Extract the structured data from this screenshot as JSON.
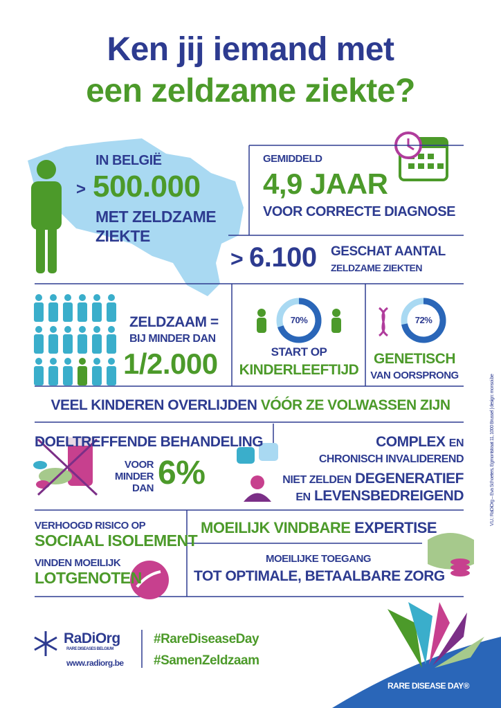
{
  "title": {
    "line1": "Ken jij iemand met",
    "line2": "een zeldzame ziekte?"
  },
  "belgium": {
    "intro": "IN BELGIË",
    "prefix": ">",
    "number": "500.000",
    "text1": "MET ZELDZAME",
    "text2": "ZIEKTE"
  },
  "diagnosis": {
    "intro": "GEMIDDELD",
    "number": "4,9 JAAR",
    "text": "VOOR CORRECTE DIAGNOSE"
  },
  "diseases": {
    "prefix": ">",
    "number": "6.100",
    "text1": "GESCHAT AANTAL",
    "text2": "ZELDZAME ZIEKTEN"
  },
  "rarity": {
    "line1": "ZELDZAAM =",
    "line2": "BIJ MINDER DAN",
    "number": "1/2.000"
  },
  "children": {
    "donut": {
      "value": 70,
      "label": "70%"
    },
    "line1": "START OP",
    "line2": "KINDERLEEFTIJD"
  },
  "genetic": {
    "donut": {
      "value": 72,
      "label": "72%"
    },
    "line1": "GENETISCH",
    "line2": "VAN OORSPRONG"
  },
  "mortality": {
    "part1": "VEEL KINDEREN OVERLIJDEN",
    "part2": "VÓÓR ZE VOLWASSEN ZIJN"
  },
  "treatment": {
    "title": "DOELTREFFENDE BEHANDELING",
    "line1": "VOOR",
    "line2": "MINDER",
    "line3": "DAN",
    "number": "6%"
  },
  "complexity": {
    "word1": "COMPLEX",
    "word2": "EN",
    "line2": "CHRONISCH INVALIDEREND",
    "line3a": "NIET ZELDEN",
    "line3b": "DEGENERATIEF",
    "line4a": "EN",
    "line4b": "LEVENSBEDREIGEND"
  },
  "isolation": {
    "line1": "VERHOOGD RISICO OP",
    "line2": "SOCIAAL ISOLEMENT",
    "line3": "VINDEN MOEILIJK",
    "line4": "LOTGENOTEN"
  },
  "expertise": {
    "part1": "MOEILIJK VINDBARE",
    "part2": "EXPERTISE"
  },
  "access": {
    "line1": "MOEILIJKE TOEGANG",
    "line2": "TOT OPTIMALE, BETAALBARE ZORG"
  },
  "side_note": "V.U.: RaDiOrg – Eva Schoeters, Egmontstraat 11, 1000 Brussel | design: monsoi.be",
  "footer": {
    "logo": "RaDiOrg",
    "logo_sub": "RARE DISEASES BELGIUM",
    "url": "www.radiorg.be",
    "tag1": "#RareDiseaseDay",
    "tag2": "#SamenZeldzaam",
    "badge": "RARE DISEASE DAY®"
  }
}
